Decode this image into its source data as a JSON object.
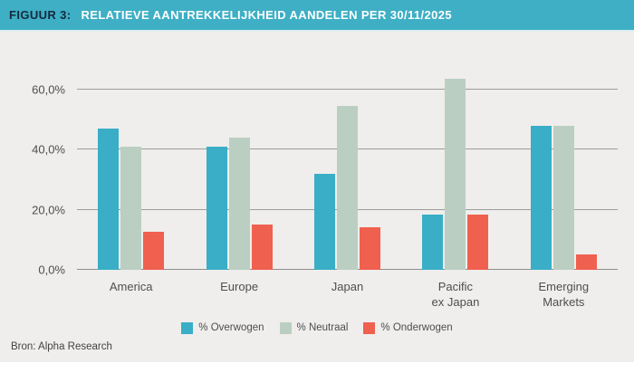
{
  "header": {
    "label": "FIGUUR 3:",
    "title": "RELATIEVE AANTREKKELIJKHEID AANDELEN PER 30/11/2025"
  },
  "source": "Bron: Alpha Research",
  "colors": {
    "header_bg": "#3EAFC5",
    "header_label": "#15293C",
    "header_title": "#FFFFFF",
    "panel_bg": "#EFEEEC",
    "gridline": "#9D9D9B",
    "axis_text": "#4E4E50",
    "overwogen": "#39AEC6",
    "neutraal": "#BACFC2",
    "onderwogen": "#F0604F"
  },
  "chart_data": {
    "type": "bar",
    "title": "RELATIEVE AANTREKKELIJKHEID AANDELEN PER 30/11/2025",
    "categories": [
      "America",
      "Europe",
      "Japan",
      "Pacific\nex Japan",
      "Emerging\nMarkets"
    ],
    "series": [
      {
        "name": "% Overwogen",
        "color": "#39AEC6",
        "values": [
          47,
          41,
          32,
          18.5,
          48
        ]
      },
      {
        "name": "% Neutraal",
        "color": "#BACFC2",
        "values": [
          41,
          44,
          54.5,
          63.5,
          48
        ]
      },
      {
        "name": "% Onderwogen",
        "color": "#F0604F",
        "values": [
          12.5,
          15,
          14,
          18.5,
          5
        ]
      }
    ],
    "xlabel": "",
    "ylabel": "",
    "ylim": [
      0,
      65
    ],
    "yticks": [
      {
        "value": 0,
        "label": "0,0%"
      },
      {
        "value": 20,
        "label": "20,0%"
      },
      {
        "value": 40,
        "label": "40,0%"
      },
      {
        "value": 60,
        "label": "60,0%"
      }
    ],
    "grid": true,
    "legend_position": "bottom"
  }
}
